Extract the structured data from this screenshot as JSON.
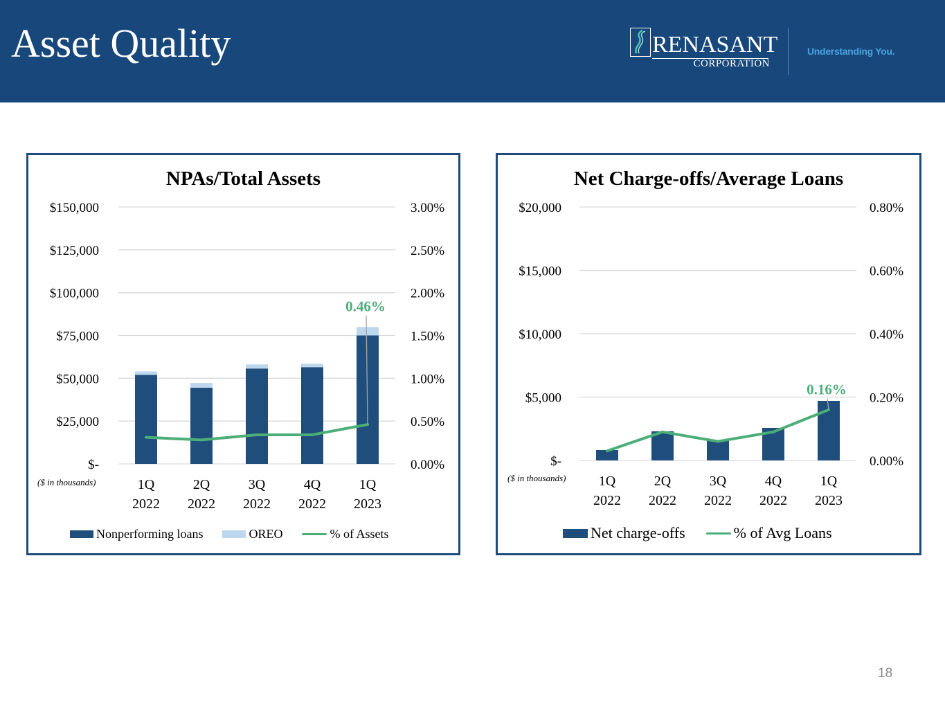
{
  "header": {
    "title": "Asset Quality",
    "logo": {
      "name": "RENASANT",
      "subtitle": "CORPORATION",
      "icon": "renasant-emblem-icon"
    },
    "tagline": "Understanding You."
  },
  "colors": {
    "header_bg": "#17477b",
    "bar_primary": "#1f4e7d",
    "bar_secondary": "#bdd7ee",
    "line": "#4cae77",
    "panel_border": "#1f4a7a",
    "grid": "#d9d9d9",
    "tagline": "#4aa3e0"
  },
  "page_number": "18",
  "chart_data": [
    {
      "type": "bar",
      "stacked": true,
      "title": "NPAs/Total Assets",
      "units_note": "($ in thousands)",
      "categories": [
        "1Q 2022",
        "2Q 2022",
        "3Q 2022",
        "4Q 2022",
        "1Q 2023"
      ],
      "category_lines": [
        [
          "1Q",
          "2022"
        ],
        [
          "2Q",
          "2022"
        ],
        [
          "3Q",
          "2022"
        ],
        [
          "4Q",
          "2022"
        ],
        [
          "1Q",
          "2023"
        ]
      ],
      "series": [
        {
          "name": "Nonperforming loans",
          "kind": "bar",
          "axis": "left",
          "values": [
            52000,
            44500,
            55700,
            56500,
            75000
          ]
        },
        {
          "name": "OREO",
          "kind": "bar",
          "axis": "left",
          "values": [
            2000,
            2800,
            2400,
            2000,
            4900
          ]
        },
        {
          "name": "% of Assets",
          "kind": "line",
          "axis": "right",
          "values": [
            0.31,
            0.28,
            0.34,
            0.34,
            0.46
          ]
        }
      ],
      "left_axis": {
        "min": 0,
        "max": 150000,
        "ticks": [
          "$-",
          "$25,000",
          "$50,000",
          "$75,000",
          "$100,000",
          "$125,000",
          "$150,000"
        ]
      },
      "right_axis": {
        "min": 0,
        "max": 3.0,
        "ticks": [
          "0.00%",
          "0.50%",
          "1.00%",
          "1.50%",
          "2.00%",
          "2.50%",
          "3.00%"
        ]
      },
      "data_labels": [
        {
          "series": "% of Assets",
          "index": 4,
          "text": "0.46%"
        }
      ],
      "grid": true,
      "legend": "bottom",
      "legend_labels": [
        "Nonperforming loans",
        "OREO",
        "% of Assets"
      ]
    },
    {
      "type": "bar",
      "stacked": false,
      "title": "Net Charge-offs/Average Loans",
      "units_note": "($ in thousands)",
      "categories": [
        "1Q 2022",
        "2Q 2022",
        "3Q 2022",
        "4Q 2022",
        "1Q 2023"
      ],
      "category_lines": [
        [
          "1Q",
          "2022"
        ],
        [
          "2Q",
          "2022"
        ],
        [
          "3Q",
          "2022"
        ],
        [
          "4Q",
          "2022"
        ],
        [
          "1Q",
          "2023"
        ]
      ],
      "series": [
        {
          "name": "Net charge-offs",
          "kind": "bar",
          "axis": "left",
          "values": [
            820,
            2300,
            1600,
            2570,
            4700
          ]
        },
        {
          "name": "% of Avg Loans",
          "kind": "line",
          "axis": "right",
          "values": [
            0.03,
            0.09,
            0.06,
            0.09,
            0.16
          ]
        }
      ],
      "left_axis": {
        "min": 0,
        "max": 20000,
        "ticks": [
          "$-",
          "$5,000",
          "$10,000",
          "$15,000",
          "$20,000"
        ]
      },
      "right_axis": {
        "min": 0,
        "max": 0.8,
        "ticks": [
          "0.00%",
          "0.20%",
          "0.40%",
          "0.60%",
          "0.80%"
        ]
      },
      "data_labels": [
        {
          "series": "% of Avg Loans",
          "index": 4,
          "text": "0.16%"
        }
      ],
      "grid": true,
      "legend": "bottom",
      "legend_labels": [
        "Net charge-offs",
        "% of Avg Loans"
      ]
    }
  ]
}
